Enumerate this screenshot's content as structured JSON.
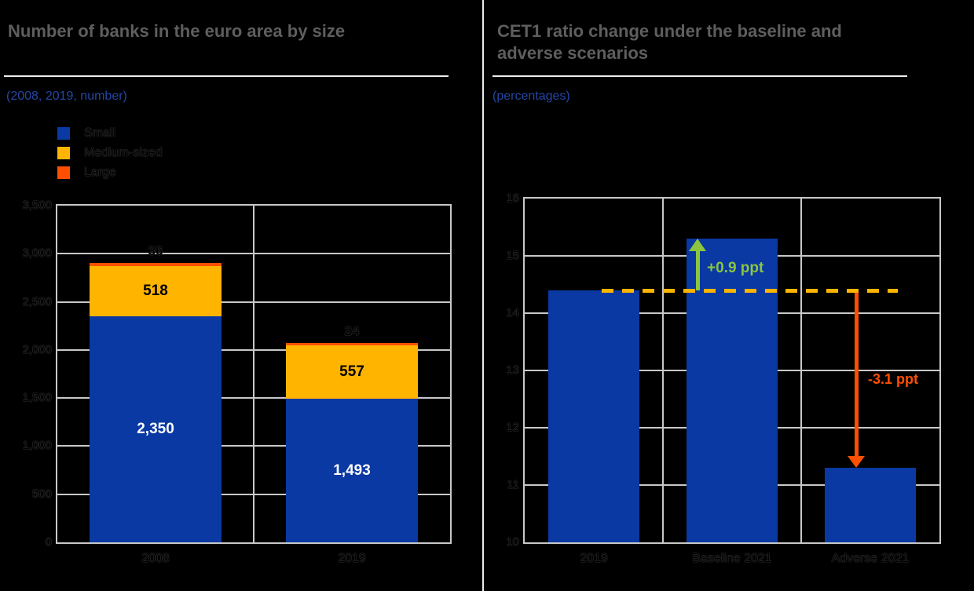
{
  "colors": {
    "background": "#000000",
    "title_gray": "#5e5e5e",
    "subtitle_blue": "#2447a5",
    "grid_gray": "#c8c8c8",
    "rule_white": "#ececec",
    "blue": "#0a39a3",
    "yellow": "#ffb400",
    "orange_red": "#fd4f00",
    "green": "#8cc63f",
    "dashed_yellow": "#ffb400"
  },
  "left_panel": {
    "title": "Number of banks in the euro area by size",
    "subtitle": "(2008, 2019, number)",
    "legend": [
      {
        "label": "Small",
        "color": "#0a39a3"
      },
      {
        "label": "Medium-sized",
        "color": "#ffb400"
      },
      {
        "label": "Large",
        "color": "#fd4f00"
      }
    ]
  },
  "right_panel": {
    "title": "CET1 ratio change under the baseline and adverse scenarios",
    "subtitle": "(percentages)"
  },
  "chart_data": [
    {
      "type": "bar",
      "stacked": true,
      "title": "Number of banks in the euro area by size",
      "subtitle": "(2008, 2019, number)",
      "categories": [
        "2008",
        "2019"
      ],
      "series": [
        {
          "name": "Small",
          "color": "#0a39a3",
          "values": [
            2350,
            1493
          ],
          "labels": [
            "2,350",
            "1,493"
          ],
          "label_pos": "inside",
          "label_color": "#ffffff"
        },
        {
          "name": "Medium-sized",
          "color": "#ffb400",
          "values": [
            518,
            557
          ],
          "labels": [
            "518",
            "557"
          ],
          "label_pos": "inside",
          "label_color": "#000000"
        },
        {
          "name": "Large",
          "color": "#fd4f00",
          "values": [
            36,
            24
          ],
          "labels": [
            "36",
            "24"
          ],
          "label_pos": "above",
          "label_color": "ghost"
        }
      ],
      "ylim": [
        0,
        3500
      ],
      "ytick_step": 500,
      "ytick_labels": [
        "0",
        "500",
        "1,000",
        "1,500",
        "2,000",
        "2,500",
        "3,000",
        "3,500"
      ],
      "grid": true,
      "legend_position": "top-left"
    },
    {
      "type": "bar",
      "stacked": false,
      "title": "CET1 ratio change under the baseline and adverse scenarios",
      "subtitle": "(percentages)",
      "categories": [
        "2019",
        "Baseline 2021",
        "Adverse 2021"
      ],
      "values": [
        14.4,
        15.3,
        11.3
      ],
      "bar_color": "#0a39a3",
      "ylim": [
        10,
        16
      ],
      "ytick_step": 1,
      "ytick_labels": [
        "10",
        "11",
        "12",
        "13",
        "14",
        "15",
        "16"
      ],
      "grid": true,
      "reference_line": {
        "value": 14.4,
        "style": "dashed",
        "color": "#ffb400"
      },
      "annotations": [
        {
          "text": "+0.9 ppt",
          "color": "#8cc63f",
          "arrow": "up",
          "from": 14.4,
          "to": 15.3,
          "bar_index": 1
        },
        {
          "text": "-3.1 ppt",
          "color": "#fd4f00",
          "arrow": "down",
          "from": 14.4,
          "to": 11.3,
          "bar_index": 2
        }
      ]
    }
  ]
}
